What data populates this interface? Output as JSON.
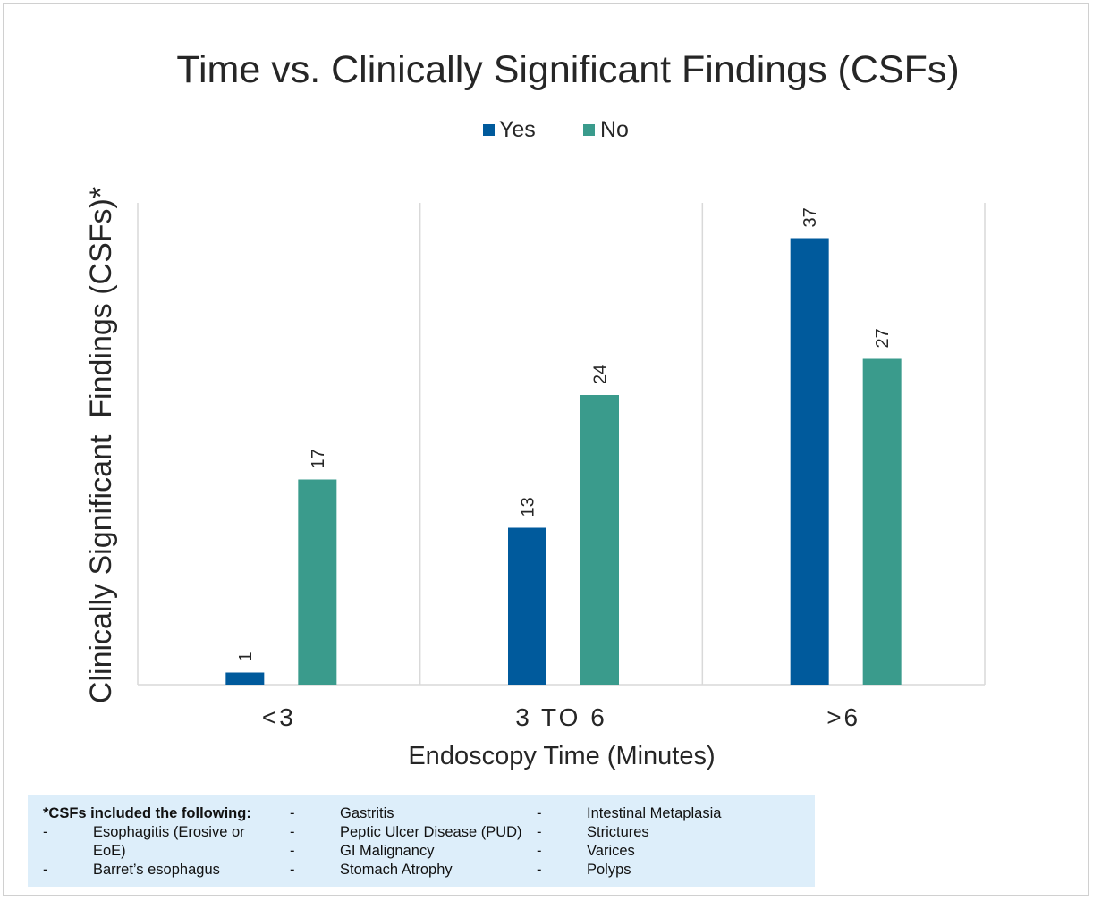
{
  "chart_data": {
    "type": "bar",
    "title": "Time vs. Clinically Significant Findings (CSFs)",
    "xlabel": "Endoscopy Time (Minutes)",
    "ylabel": "Clinically Significant  Findings (CSFs)*",
    "categories": [
      "<3",
      "3 TO 6",
      ">6"
    ],
    "series": [
      {
        "name": "Yes",
        "values": [
          1,
          13,
          37
        ],
        "color": "#005a9c"
      },
      {
        "name": "No",
        "values": [
          17,
          24,
          27
        ],
        "color": "#3a9b8c"
      }
    ],
    "ylim": [
      0,
      40
    ],
    "legend": "top-center",
    "grid": "vertical category separators"
  },
  "notes": {
    "header": "*CSFs included the following:",
    "dash": "-",
    "col1": [
      "Esophagitis (Erosive or",
      "EoE)",
      "Barret’s esophagus"
    ],
    "col2": [
      "Gastritis",
      "Peptic Ulcer Disease (PUD)",
      "GI Malignancy",
      "Stomach Atrophy"
    ],
    "col3": [
      "Intestinal Metaplasia",
      "Strictures",
      "Varices",
      "Polyps"
    ]
  }
}
